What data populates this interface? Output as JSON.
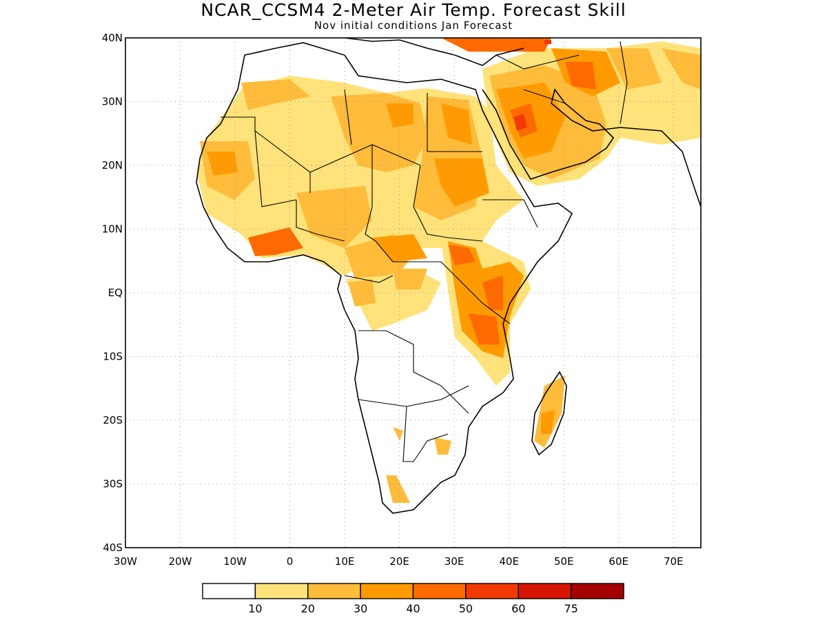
{
  "title": "NCAR_CCSM4 2-Meter Air Temp. Forecast Skill",
  "subtitle": "Nov initial conditions  Jan Forecast",
  "map": {
    "lon_range": [
      -30,
      75
    ],
    "lat_range": [
      -40,
      40
    ],
    "grid_lines": "dotted",
    "lon_ticks": [
      "30W",
      "20W",
      "10W",
      "0",
      "10E",
      "20E",
      "30E",
      "40E",
      "50E",
      "60E",
      "70E"
    ],
    "lat_ticks": [
      "40N",
      "30N",
      "20N",
      "10N",
      "EQ",
      "10S",
      "20S",
      "30S",
      "40S"
    ]
  },
  "legend": {
    "labels": [
      "10",
      "20",
      "30",
      "40",
      "50",
      "60",
      "75"
    ],
    "colors": [
      "#ffffff",
      "#ffe27a",
      "#ffbb3a",
      "#ff9b00",
      "#ff6a00",
      "#f23a00",
      "#d81500",
      "#a50000"
    ]
  },
  "icons": [
    "land-outline",
    "country-border"
  ]
}
